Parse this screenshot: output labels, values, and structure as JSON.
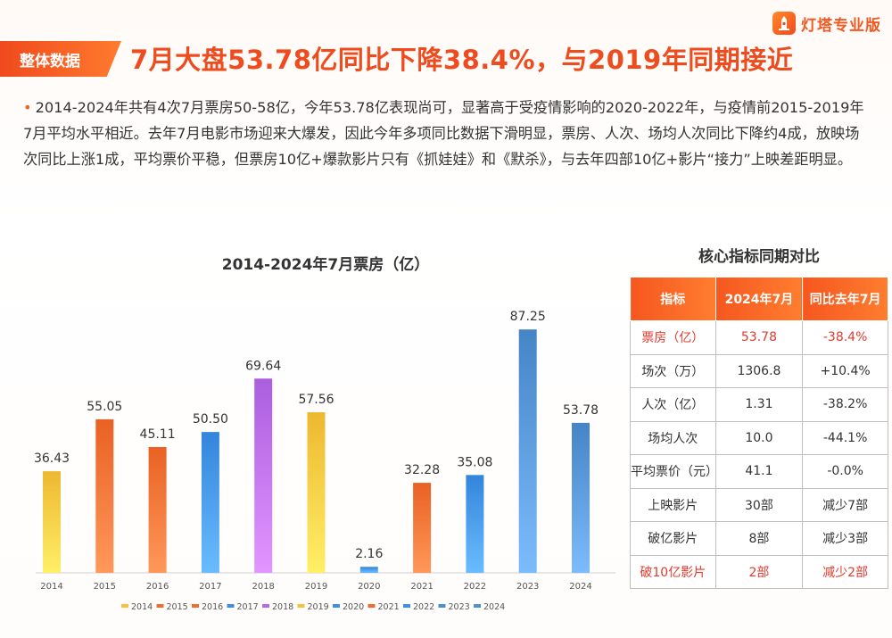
{
  "brand": {
    "name": "灯塔专业版",
    "icon": "lighthouse-logo-icon"
  },
  "header": {
    "tag": "整体数据",
    "headline": "7月大盘53.78亿同比下降38.4%，与2019年同期接近"
  },
  "summary": {
    "bullet": "•",
    "text": "2014-2024年共有4次7月票房50-58亿，今年53.78亿表现尚可，显著高于受疫情影响的2020-2022年，与疫情前2015-2019年7月平均水平相近。去年7月电影市场迎来大爆发，因此今年多项同比数据下滑明显，票房、人次、场均人次同比下降约4成，放映场次同比上涨1成，平均票价平稳，但票房10亿+爆款影片只有《抓娃娃》和《默杀》，与去年四部10亿+影片“接力”上映差距明显。"
  },
  "chart_data": {
    "type": "bar",
    "title": "2014-2024年7月票房（亿）",
    "categories": [
      "2014",
      "2015",
      "2016",
      "2017",
      "2018",
      "2019",
      "2020",
      "2021",
      "2022",
      "2023",
      "2024"
    ],
    "values": [
      36.43,
      55.05,
      45.11,
      50.5,
      69.64,
      57.56,
      2.16,
      32.28,
      35.08,
      87.25,
      53.78
    ],
    "value_labels": [
      "36.43",
      "55.05",
      "45.11",
      "50.50",
      "69.64",
      "57.56",
      "2.16",
      "32.28",
      "35.08",
      "87.25",
      "53.78"
    ],
    "colors": [
      "#f7c23a",
      "#f36b2d",
      "#f36b2d",
      "#3d8fe6",
      "#b568e8",
      "#f7c23a",
      "#3d8fe6",
      "#f36b2d",
      "#3d8fe6",
      "#4f8fd0",
      "#4f8fd0"
    ],
    "legend": [
      "2014",
      "2015",
      "2016",
      "2017",
      "2018",
      "2019",
      "2020",
      "2021",
      "2022",
      "2023",
      "2024"
    ],
    "legend_placement": "bottom",
    "ylim": [
      0,
      95
    ],
    "grid": false,
    "xlabel": "",
    "ylabel": ""
  },
  "kpi_table": {
    "title": "核心指标同期对比",
    "headers": [
      "指标",
      "2024年7月",
      "同比去年7月"
    ],
    "rows": [
      {
        "metric": "票房（亿）",
        "value": "53.78",
        "yoy": "-38.4%",
        "highlight": true
      },
      {
        "metric": "场次（万）",
        "value": "1306.8",
        "yoy": "+10.4%",
        "highlight": false
      },
      {
        "metric": "人次（亿）",
        "value": "1.31",
        "yoy": "-38.2%",
        "highlight": false
      },
      {
        "metric": "场均人次",
        "value": "10.0",
        "yoy": "-44.1%",
        "highlight": false
      },
      {
        "metric": "平均票价（元）",
        "value": "41.1",
        "yoy": "-0.0%",
        "highlight": false
      },
      {
        "metric": "上映影片",
        "value": "30部",
        "yoy": "减少7部",
        "highlight": false
      },
      {
        "metric": "破亿影片",
        "value": "8部",
        "yoy": "减少3部",
        "highlight": false
      },
      {
        "metric": "破10亿影片",
        "value": "2部",
        "yoy": "减少2部",
        "highlight": true
      }
    ]
  }
}
